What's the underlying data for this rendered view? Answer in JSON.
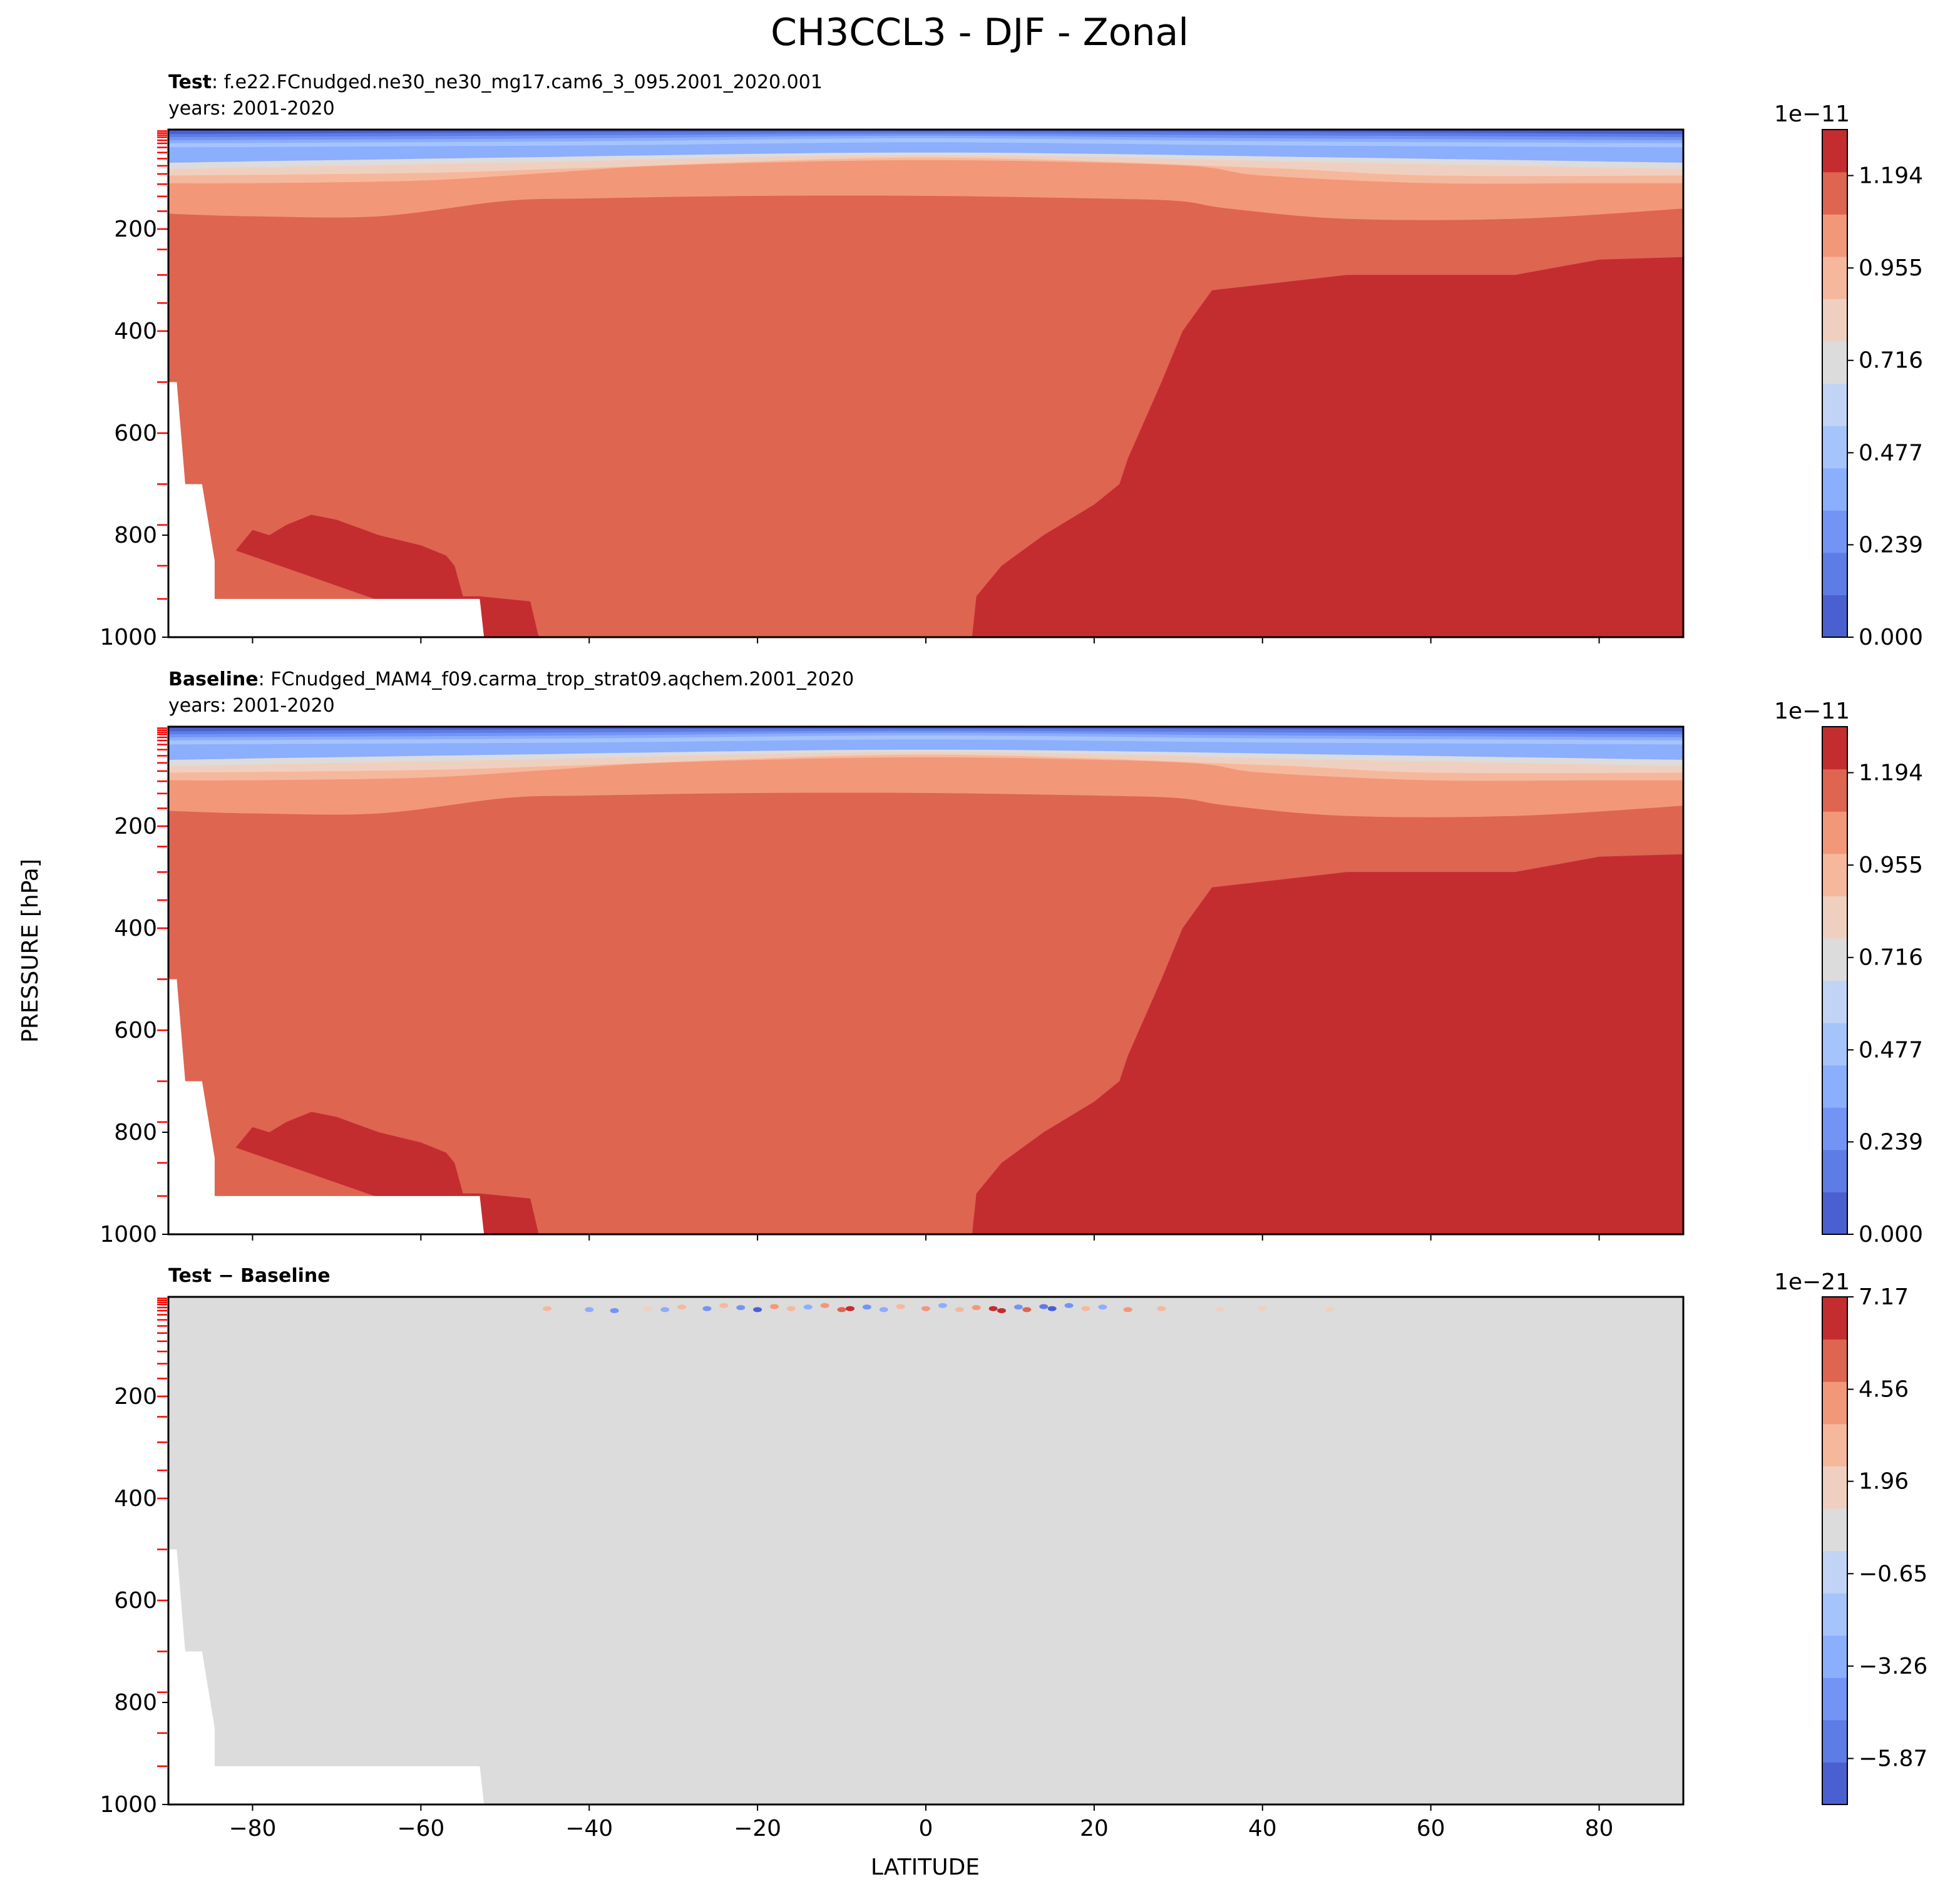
{
  "figure": {
    "title": "CH3CCL3 - DJF - Zonal",
    "ylabel": "PRESSURE [hPa]",
    "xlabel": "LATITUDE"
  },
  "colormap": {
    "fill_color": "#de6550",
    "strong_color": "#c32d30",
    "missing_color": "#ffffff",
    "diff_neutral_color": "#dcdcdc",
    "levels": [
      "#4a60d0",
      "#5d7ce6",
      "#7394f5",
      "#8baefd",
      "#a6c4fc",
      "#c2d4f5",
      "#dcdcdc",
      "#efd0c0",
      "#f6b89c",
      "#f39779",
      "#de6550",
      "#c32d30"
    ]
  },
  "chart_data": [
    {
      "type": "contourf",
      "panel": "test",
      "label_bold": "Test",
      "label_rest": ": f.e22.FCnudged.ne30_ne30_mg17.cam6_3_095.2001_2020.001",
      "subtitle": "years: 2001-2020",
      "x": [
        -90,
        90
      ],
      "xticks": [
        -80,
        -60,
        -40,
        -20,
        0,
        20,
        40,
        60,
        80
      ],
      "ylim": [
        1000,
        5
      ],
      "yticks": [
        200,
        400,
        600,
        800,
        1000
      ],
      "colorbar": {
        "exponent": "1e−11",
        "ticks": [
          0.0,
          0.239,
          0.477,
          0.716,
          0.955,
          1.194
        ],
        "ticklabels": [
          "0.000",
          "0.239",
          "0.477",
          "0.716",
          "0.955",
          "1.194"
        ],
        "range": [
          0,
          1.313
        ]
      },
      "contour_boundaries": [
        {
          "level": 1.194,
          "lat": [
            -90,
            -80,
            -65,
            -50,
            -40,
            -20,
            0,
            20,
            30,
            36,
            50,
            70,
            90
          ],
          "p": [
            170,
            175,
            175,
            145,
            140,
            135,
            135,
            140,
            145,
            160,
            180,
            180,
            160
          ]
        },
        {
          "level": 1.075,
          "lat": [
            -90,
            -80,
            -60,
            -45,
            -30,
            0,
            30,
            40,
            60,
            80,
            90
          ],
          "p": [
            110,
            110,
            105,
            90,
            75,
            65,
            75,
            95,
            110,
            110,
            110
          ]
        },
        {
          "level": 0.955,
          "lat": [
            -90,
            -60,
            -40,
            0,
            40,
            60,
            90
          ],
          "p": [
            95,
            90,
            80,
            60,
            80,
            95,
            95
          ]
        },
        {
          "level": 0.836,
          "lat": [
            -90,
            -50,
            0,
            50,
            90
          ],
          "p": [
            82,
            70,
            55,
            70,
            82
          ]
        },
        {
          "level": 0.716,
          "lat": [
            -90,
            -50,
            0,
            50,
            90
          ],
          "p": [
            70,
            60,
            50,
            60,
            70
          ]
        },
        {
          "level": 0.239,
          "lat": [
            -90,
            0,
            90
          ],
          "p": [
            25,
            15,
            25
          ]
        }
      ],
      "high_region": {
        "level": 1.313,
        "lat": [
          5.5,
          6,
          9,
          14,
          20,
          23,
          24,
          28,
          30.5,
          34,
          50,
          70,
          80,
          90,
          90
        ],
        "p": [
          1000,
          920,
          860,
          800,
          740,
          700,
          650,
          500,
          400,
          320,
          290,
          290,
          260,
          255,
          1000
        ]
      },
      "high_region_south": {
        "level": 1.313,
        "lat": [
          -82,
          -80,
          -78,
          -76,
          -73,
          -70,
          -65,
          -60,
          -57,
          -56,
          -55,
          -53,
          -47,
          -46,
          -52.5
        ],
        "p": [
          830,
          790,
          800,
          780,
          760,
          770,
          800,
          820,
          840,
          860,
          920,
          920,
          930,
          1000,
          1000
        ]
      },
      "missing_region": {
        "lat": [
          -90,
          -89,
          -88,
          -86,
          -84.5,
          -84.5,
          -53,
          -52.5,
          -90
        ],
        "p": [
          500,
          500,
          700,
          700,
          850,
          925,
          925,
          1000,
          1000
        ]
      }
    },
    {
      "type": "contourf",
      "panel": "baseline",
      "label_bold": "Baseline",
      "label_rest": ": FCnudged_MAM4_f09.carma_trop_strat09.aqchem.2001_2020",
      "subtitle": "years: 2001-2020",
      "x": [
        -90,
        90
      ],
      "xticks": [
        -80,
        -60,
        -40,
        -20,
        0,
        20,
        40,
        60,
        80
      ],
      "ylim": [
        1000,
        5
      ],
      "yticks": [
        200,
        400,
        600,
        800,
        1000
      ],
      "colorbar": {
        "exponent": "1e−11",
        "ticks": [
          0.0,
          0.239,
          0.477,
          0.716,
          0.955,
          1.194
        ],
        "ticklabels": [
          "0.000",
          "0.239",
          "0.477",
          "0.716",
          "0.955",
          "1.194"
        ],
        "range": [
          0,
          1.313
        ]
      }
    },
    {
      "type": "contourf",
      "panel": "difference",
      "label_bold": "Test − Baseline",
      "x": [
        -90,
        90
      ],
      "xticks": [
        -80,
        -60,
        -40,
        -20,
        0,
        20,
        40,
        60,
        80
      ],
      "xticklabels": [
        "−80",
        "−60",
        "−40",
        "−20",
        "0",
        "20",
        "40",
        "60",
        "80"
      ],
      "ylim": [
        1000,
        5
      ],
      "yticks": [
        200,
        400,
        600,
        800,
        1000
      ],
      "colorbar": {
        "exponent": "1e−21",
        "ticks": [
          -5.87,
          -3.26,
          -0.65,
          1.96,
          4.56,
          7.17
        ],
        "ticklabels": [
          "−5.87",
          "−3.26",
          "−0.65",
          "1.96",
          "4.56",
          "7.17"
        ],
        "range": [
          -7.17,
          7.17
        ]
      },
      "noise_points": [
        {
          "lat": -45,
          "p": 28,
          "v": 3
        },
        {
          "lat": -40,
          "p": 30,
          "v": -3
        },
        {
          "lat": -37,
          "p": 32,
          "v": -4
        },
        {
          "lat": -33,
          "p": 28,
          "v": 2
        },
        {
          "lat": -31,
          "p": 30,
          "v": -3
        },
        {
          "lat": -29,
          "p": 25,
          "v": 3
        },
        {
          "lat": -26,
          "p": 28,
          "v": -4
        },
        {
          "lat": -24,
          "p": 22,
          "v": 3
        },
        {
          "lat": -22,
          "p": 26,
          "v": -4
        },
        {
          "lat": -20,
          "p": 30,
          "v": -7
        },
        {
          "lat": -18,
          "p": 24,
          "v": 4
        },
        {
          "lat": -16,
          "p": 28,
          "v": 3
        },
        {
          "lat": -14,
          "p": 25,
          "v": -3
        },
        {
          "lat": -12,
          "p": 22,
          "v": 4
        },
        {
          "lat": -10,
          "p": 30,
          "v": 5
        },
        {
          "lat": -9,
          "p": 28,
          "v": 7
        },
        {
          "lat": -7,
          "p": 25,
          "v": -4
        },
        {
          "lat": -5,
          "p": 30,
          "v": -3
        },
        {
          "lat": -3,
          "p": 24,
          "v": 3
        },
        {
          "lat": 0,
          "p": 28,
          "v": 4
        },
        {
          "lat": 2,
          "p": 22,
          "v": -3
        },
        {
          "lat": 4,
          "p": 30,
          "v": 3
        },
        {
          "lat": 6,
          "p": 26,
          "v": 4
        },
        {
          "lat": 8,
          "p": 28,
          "v": 6
        },
        {
          "lat": 9,
          "p": 32,
          "v": 7
        },
        {
          "lat": 11,
          "p": 25,
          "v": -4
        },
        {
          "lat": 12,
          "p": 30,
          "v": 5
        },
        {
          "lat": 14,
          "p": 24,
          "v": -5
        },
        {
          "lat": 15,
          "p": 28,
          "v": -6
        },
        {
          "lat": 17,
          "p": 22,
          "v": -4
        },
        {
          "lat": 19,
          "p": 28,
          "v": 3
        },
        {
          "lat": 21,
          "p": 25,
          "v": -3
        },
        {
          "lat": 24,
          "p": 30,
          "v": 4
        },
        {
          "lat": 28,
          "p": 28,
          "v": 3
        },
        {
          "lat": 35,
          "p": 30,
          "v": 2
        },
        {
          "lat": 40,
          "p": 28,
          "v": 2
        },
        {
          "lat": 48,
          "p": 30,
          "v": 2
        }
      ],
      "missing_region": {
        "lat": [
          -90,
          -89,
          -88,
          -86,
          -84.5,
          -84.5,
          -53,
          -52.5,
          -90
        ],
        "p": [
          500,
          500,
          700,
          700,
          850,
          925,
          925,
          1000,
          1000
        ]
      }
    }
  ]
}
